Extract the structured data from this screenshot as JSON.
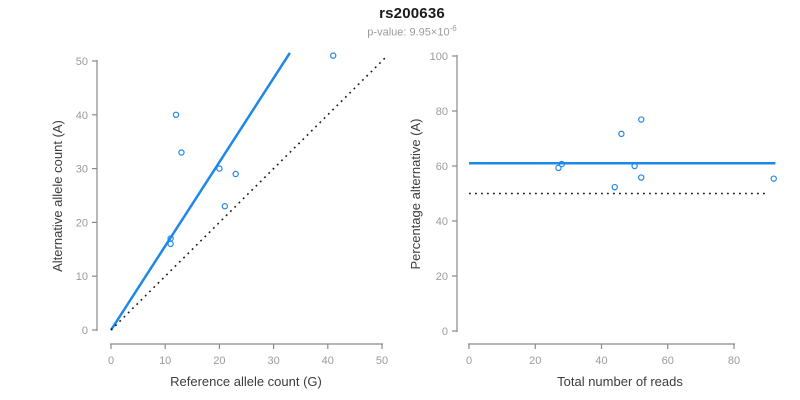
{
  "header": {
    "title": "rs200636",
    "pvalue_prefix": "p-value: 9.95×10",
    "pvalue_exponent": "-6"
  },
  "colors": {
    "accent_blue": "#1E87E8",
    "axis_gray": "#8a8a8a",
    "tick_label_gray": "#9b9b9b",
    "axis_title_dark": "#3c3c3c",
    "dotted_black": "#1a1a1a"
  },
  "chart_data": [
    {
      "type": "scatter",
      "panel": "left",
      "xlabel": "Reference allele count (G)",
      "ylabel": "Alternative allele count (A)",
      "xlim": [
        0,
        50
      ],
      "ylim": [
        0,
        50
      ],
      "x_ticks": [
        0,
        10,
        20,
        30,
        40,
        50
      ],
      "y_ticks": [
        0,
        10,
        20,
        30,
        40,
        50
      ],
      "grid": false,
      "legend": "none",
      "marker": "open-circle",
      "points": [
        [
          11,
          16
        ],
        [
          11,
          17
        ],
        [
          12,
          40
        ],
        [
          13,
          33
        ],
        [
          20,
          30
        ],
        [
          21,
          23
        ],
        [
          23,
          29
        ],
        [
          41,
          51
        ]
      ],
      "lines": [
        {
          "name": "fit-line",
          "style": "solid",
          "color": "#1E87E8",
          "x": [
            0,
            33
          ],
          "y": [
            0,
            51.5
          ]
        },
        {
          "name": "identity-line",
          "style": "dotted",
          "color": "#1a1a1a",
          "x": [
            0,
            51
          ],
          "y": [
            0,
            51
          ]
        }
      ]
    },
    {
      "type": "scatter",
      "panel": "right",
      "xlabel": "Total number of reads",
      "ylabel": "Percentage alternative (A)",
      "xlim": [
        0,
        92.5
      ],
      "ylim": [
        0,
        100
      ],
      "x_ticks": [
        0,
        20,
        40,
        60,
        80
      ],
      "y_ticks": [
        0,
        20,
        40,
        60,
        80,
        100
      ],
      "grid": false,
      "legend": "none",
      "marker": "open-circle",
      "points": [
        [
          27,
          59.3
        ],
        [
          28,
          60.7
        ],
        [
          44,
          52.3
        ],
        [
          46,
          71.7
        ],
        [
          50,
          60
        ],
        [
          52,
          55.8
        ],
        [
          52,
          76.9
        ],
        [
          92,
          55.4
        ]
      ],
      "lines": [
        {
          "name": "fit-line",
          "style": "solid",
          "color": "#1E87E8",
          "x": [
            0,
            92.5
          ],
          "y": [
            61,
            61
          ]
        },
        {
          "name": "null-line",
          "style": "dotted",
          "color": "#1a1a1a",
          "x": [
            0,
            90
          ],
          "y": [
            50,
            50
          ]
        }
      ]
    }
  ]
}
